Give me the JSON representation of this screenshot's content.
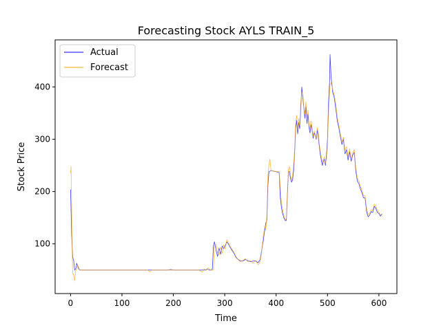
{
  "chart_data": {
    "type": "line",
    "title": "Forecasting Stock AYLS TRAIN_5",
    "xlabel": "Time",
    "ylabel": "Stock Price",
    "xlim": [
      -30,
      635
    ],
    "ylim": [
      5,
      490
    ],
    "x_ticks": [
      0,
      100,
      200,
      300,
      400,
      500,
      600
    ],
    "y_ticks": [
      100,
      200,
      300,
      400
    ],
    "grid": false,
    "legend_position": "top-left",
    "series": [
      {
        "name": "Actual",
        "color": "#0000ff",
        "points": [
          [
            0,
            204
          ],
          [
            2,
            120
          ],
          [
            4,
            75
          ],
          [
            6,
            68
          ],
          [
            8,
            50
          ],
          [
            10,
            52
          ],
          [
            12,
            63
          ],
          [
            14,
            57
          ],
          [
            16,
            52
          ],
          [
            18,
            50
          ],
          [
            25,
            50
          ],
          [
            50,
            50
          ],
          [
            100,
            50
          ],
          [
            150,
            50
          ],
          [
            190,
            50
          ],
          [
            195,
            51
          ],
          [
            200,
            50
          ],
          [
            250,
            50
          ],
          [
            262,
            50
          ],
          [
            266,
            52
          ],
          [
            270,
            50
          ],
          [
            274,
            50
          ],
          [
            276,
            52
          ],
          [
            278,
            96
          ],
          [
            280,
            104
          ],
          [
            283,
            88
          ],
          [
            286,
            76
          ],
          [
            289,
            92
          ],
          [
            292,
            80
          ],
          [
            295,
            96
          ],
          [
            298,
            91
          ],
          [
            301,
            97
          ],
          [
            304,
            104
          ],
          [
            307,
            100
          ],
          [
            310,
            94
          ],
          [
            314,
            88
          ],
          [
            318,
            82
          ],
          [
            322,
            74
          ],
          [
            326,
            70
          ],
          [
            330,
            68
          ],
          [
            335,
            67
          ],
          [
            340,
            70
          ],
          [
            345,
            68
          ],
          [
            350,
            66
          ],
          [
            355,
            67
          ],
          [
            360,
            68
          ],
          [
            365,
            64
          ],
          [
            369,
            70
          ],
          [
            372,
            88
          ],
          [
            375,
            106
          ],
          [
            378,
            128
          ],
          [
            380,
            140
          ],
          [
            382,
            146
          ],
          [
            384,
            212
          ],
          [
            386,
            238
          ],
          [
            390,
            240
          ],
          [
            400,
            238
          ],
          [
            406,
            236
          ],
          [
            408,
            190
          ],
          [
            410,
            172
          ],
          [
            412,
            160
          ],
          [
            415,
            150
          ],
          [
            418,
            144
          ],
          [
            420,
            145
          ],
          [
            422,
            195
          ],
          [
            424,
            238
          ],
          [
            426,
            238
          ],
          [
            428,
            225
          ],
          [
            430,
            218
          ],
          [
            432,
            222
          ],
          [
            434,
            240
          ],
          [
            436,
            275
          ],
          [
            438,
            320
          ],
          [
            440,
            336
          ],
          [
            442,
            310
          ],
          [
            444,
            332
          ],
          [
            446,
            320
          ],
          [
            448,
            360
          ],
          [
            450,
            400
          ],
          [
            452,
            378
          ],
          [
            454,
            360
          ],
          [
            456,
            340
          ],
          [
            458,
            362
          ],
          [
            460,
            330
          ],
          [
            462,
            348
          ],
          [
            464,
            322
          ],
          [
            466,
            312
          ],
          [
            468,
            328
          ],
          [
            470,
            318
          ],
          [
            472,
            302
          ],
          [
            474,
            312
          ],
          [
            476,
            308
          ],
          [
            478,
            300
          ],
          [
            480,
            318
          ],
          [
            482,
            305
          ],
          [
            484,
            286
          ],
          [
            486,
            270
          ],
          [
            488,
            260
          ],
          [
            490,
            250
          ],
          [
            492,
            258
          ],
          [
            494,
            262
          ],
          [
            496,
            250
          ],
          [
            498,
            270
          ],
          [
            500,
            300
          ],
          [
            502,
            370
          ],
          [
            504,
            410
          ],
          [
            505,
            462
          ],
          [
            507,
            420
          ],
          [
            510,
            390
          ],
          [
            513,
            380
          ],
          [
            516,
            360
          ],
          [
            519,
            335
          ],
          [
            522,
            322
          ],
          [
            525,
            305
          ],
          [
            528,
            290
          ],
          [
            531,
            300
          ],
          [
            534,
            272
          ],
          [
            537,
            280
          ],
          [
            540,
            260
          ],
          [
            543,
            276
          ],
          [
            546,
            258
          ],
          [
            549,
            270
          ],
          [
            552,
            275
          ],
          [
            555,
            240
          ],
          [
            558,
            220
          ],
          [
            561,
            215
          ],
          [
            564,
            205
          ],
          [
            567,
            198
          ],
          [
            570,
            188
          ],
          [
            573,
            188
          ],
          [
            576,
            162
          ],
          [
            579,
            152
          ],
          [
            582,
            155
          ],
          [
            585,
            162
          ],
          [
            588,
            160
          ],
          [
            591,
            172
          ],
          [
            594,
            168
          ],
          [
            597,
            160
          ],
          [
            600,
            158
          ],
          [
            603,
            153
          ],
          [
            606,
            157
          ]
        ]
      },
      {
        "name": "Forecast",
        "color": "#ffa500",
        "points": [
          [
            0,
            235
          ],
          [
            1,
            248
          ],
          [
            2,
            180
          ],
          [
            3,
            98
          ],
          [
            4,
            45
          ],
          [
            6,
            40
          ],
          [
            8,
            30
          ],
          [
            10,
            48
          ],
          [
            12,
            52
          ],
          [
            14,
            60
          ],
          [
            16,
            54
          ],
          [
            18,
            50
          ],
          [
            25,
            50
          ],
          [
            50,
            50
          ],
          [
            100,
            50
          ],
          [
            150,
            50
          ],
          [
            155,
            46
          ],
          [
            158,
            50
          ],
          [
            190,
            50
          ],
          [
            195,
            50
          ],
          [
            200,
            50
          ],
          [
            250,
            50
          ],
          [
            256,
            46
          ],
          [
            260,
            52
          ],
          [
            264,
            49
          ],
          [
            268,
            54
          ],
          [
            272,
            50
          ],
          [
            276,
            50
          ],
          [
            278,
            50
          ],
          [
            280,
            98
          ],
          [
            283,
            100
          ],
          [
            286,
            84
          ],
          [
            289,
            78
          ],
          [
            292,
            94
          ],
          [
            295,
            82
          ],
          [
            298,
            98
          ],
          [
            301,
            90
          ],
          [
            304,
            108
          ],
          [
            307,
            102
          ],
          [
            310,
            96
          ],
          [
            314,
            90
          ],
          [
            318,
            84
          ],
          [
            322,
            76
          ],
          [
            326,
            70
          ],
          [
            330,
            66
          ],
          [
            335,
            68
          ],
          [
            340,
            72
          ],
          [
            345,
            66
          ],
          [
            350,
            68
          ],
          [
            355,
            63
          ],
          [
            360,
            68
          ],
          [
            365,
            60
          ],
          [
            369,
            66
          ],
          [
            372,
            86
          ],
          [
            375,
            114
          ],
          [
            378,
            134
          ],
          [
            380,
            126
          ],
          [
            382,
            155
          ],
          [
            384,
            230
          ],
          [
            386,
            252
          ],
          [
            388,
            262
          ],
          [
            390,
            240
          ],
          [
            400,
            238
          ],
          [
            406,
            238
          ],
          [
            408,
            210
          ],
          [
            410,
            182
          ],
          [
            412,
            168
          ],
          [
            415,
            154
          ],
          [
            418,
            146
          ],
          [
            420,
            148
          ],
          [
            422,
            200
          ],
          [
            424,
            242
          ],
          [
            426,
            248
          ],
          [
            428,
            230
          ],
          [
            430,
            222
          ],
          [
            432,
            230
          ],
          [
            434,
            250
          ],
          [
            436,
            282
          ],
          [
            438,
            330
          ],
          [
            440,
            346
          ],
          [
            442,
            318
          ],
          [
            444,
            340
          ],
          [
            446,
            326
          ],
          [
            448,
            372
          ],
          [
            450,
            390
          ],
          [
            452,
            385
          ],
          [
            454,
            362
          ],
          [
            456,
            348
          ],
          [
            458,
            372
          ],
          [
            460,
            338
          ],
          [
            462,
            356
          ],
          [
            464,
            328
          ],
          [
            466,
            318
          ],
          [
            468,
            335
          ],
          [
            470,
            322
          ],
          [
            472,
            306
          ],
          [
            474,
            316
          ],
          [
            476,
            310
          ],
          [
            478,
            302
          ],
          [
            480,
            322
          ],
          [
            482,
            312
          ],
          [
            484,
            292
          ],
          [
            486,
            276
          ],
          [
            488,
            266
          ],
          [
            490,
            256
          ],
          [
            492,
            262
          ],
          [
            494,
            266
          ],
          [
            496,
            254
          ],
          [
            498,
            262
          ],
          [
            500,
            290
          ],
          [
            502,
            350
          ],
          [
            504,
            390
          ],
          [
            505,
            405
          ],
          [
            507,
            408
          ],
          [
            510,
            395
          ],
          [
            513,
            385
          ],
          [
            516,
            368
          ],
          [
            519,
            342
          ],
          [
            522,
            328
          ],
          [
            525,
            310
          ],
          [
            528,
            295
          ],
          [
            531,
            304
          ],
          [
            534,
            278
          ],
          [
            537,
            286
          ],
          [
            540,
            266
          ],
          [
            543,
            282
          ],
          [
            546,
            262
          ],
          [
            549,
            274
          ],
          [
            552,
            280
          ],
          [
            555,
            246
          ],
          [
            558,
            226
          ],
          [
            561,
            220
          ],
          [
            564,
            210
          ],
          [
            567,
            202
          ],
          [
            570,
            192
          ],
          [
            573,
            192
          ],
          [
            576,
            168
          ],
          [
            579,
            156
          ],
          [
            582,
            158
          ],
          [
            585,
            165
          ],
          [
            588,
            164
          ],
          [
            591,
            176
          ],
          [
            594,
            172
          ],
          [
            597,
            164
          ],
          [
            600,
            160
          ],
          [
            603,
            155
          ],
          [
            606,
            158
          ]
        ]
      }
    ]
  }
}
